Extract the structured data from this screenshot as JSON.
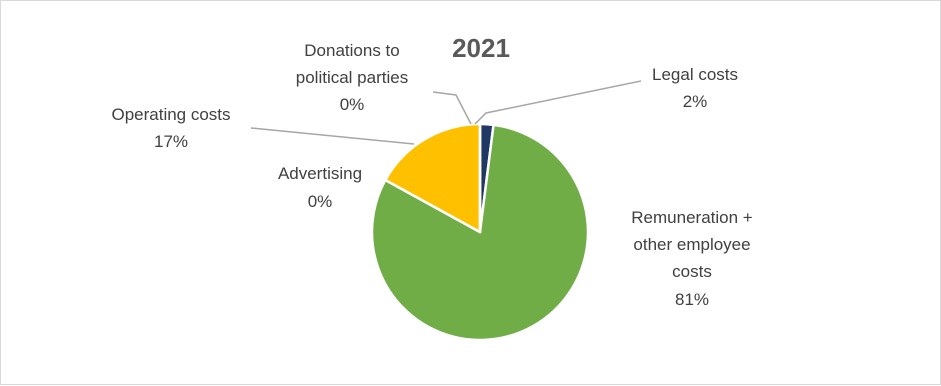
{
  "chart_data": {
    "type": "pie",
    "title": "2021",
    "slices": [
      {
        "category": "Legal costs",
        "value": 2,
        "label": "2%",
        "color": "#1f3864"
      },
      {
        "category": "Remuneration + other employee costs",
        "value": 81,
        "label": "81%",
        "color": "#70ad47"
      },
      {
        "category": "Advertising",
        "value": 0,
        "label": "0%",
        "color": "#a5a5a5"
      },
      {
        "category": "Operating costs",
        "value": 17,
        "label": "17%",
        "color": "#ffc000"
      },
      {
        "category": "Donations to political parties",
        "value": 0,
        "label": "0%",
        "color": "#5b9bd5"
      }
    ]
  },
  "labels": {
    "legal": [
      "Legal costs",
      "2%"
    ],
    "remuneration": [
      "Remuneration +",
      "other employee",
      "costs",
      "81%"
    ],
    "advertising": [
      "Advertising",
      "0%"
    ],
    "operating": [
      "Operating costs",
      "17%"
    ],
    "donations": [
      "Donations to",
      "political parties",
      "0%"
    ]
  }
}
